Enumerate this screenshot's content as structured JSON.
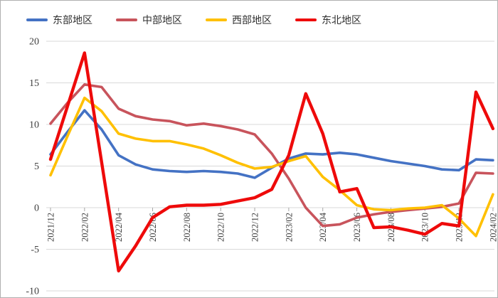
{
  "chart_data": {
    "type": "line",
    "title": "",
    "xlabel": "",
    "ylabel": "",
    "ylim": [
      -10,
      20
    ],
    "y_ticks": [
      20,
      15,
      10,
      5,
      0,
      -5,
      -10
    ],
    "grid": true,
    "legend_position": "top",
    "x_tick_labels": [
      "2021/12",
      "2022/02",
      "2022/04",
      "2022/06",
      "2022/08",
      "2022/10",
      "2022/12",
      "2023/02",
      "2023/04",
      "2023/06",
      "2023/08",
      "2023/10",
      "2023/12",
      "2024/02"
    ],
    "categories": [
      "2021/12",
      "2022/01",
      "2022/02",
      "2022/03",
      "2022/04",
      "2022/05",
      "2022/06",
      "2022/07",
      "2022/08",
      "2022/09",
      "2022/10",
      "2022/11",
      "2022/12",
      "2023/01",
      "2023/02",
      "2023/03",
      "2023/04",
      "2023/05",
      "2023/06",
      "2023/07",
      "2023/08",
      "2023/09",
      "2023/10",
      "2023/11",
      "2023/12",
      "2024/01",
      "2024/02"
    ],
    "series": [
      {
        "name": "东部地区",
        "color": "#4472C4",
        "values": [
          6.4,
          9.1,
          11.7,
          9.4,
          6.3,
          5.2,
          4.6,
          4.4,
          4.3,
          4.4,
          4.3,
          4.1,
          3.6,
          4.8,
          5.9,
          6.5,
          6.4,
          6.6,
          6.4,
          6.0,
          5.6,
          5.3,
          5.0,
          4.6,
          4.5,
          5.8,
          5.7
        ]
      },
      {
        "name": "中部地区",
        "color": "#C8545C",
        "values": [
          10.1,
          12.6,
          14.8,
          14.5,
          11.9,
          11.0,
          10.6,
          10.4,
          9.9,
          10.1,
          9.8,
          9.4,
          8.8,
          6.5,
          3.5,
          0.0,
          -2.2,
          -2.0,
          -1.2,
          -0.8,
          -0.5,
          -0.3,
          -0.1,
          0.1,
          0.5,
          4.2,
          4.1
        ]
      },
      {
        "name": "西部地区",
        "color": "#FFC000",
        "values": [
          3.9,
          8.6,
          13.2,
          11.6,
          8.9,
          8.3,
          8.0,
          8.0,
          7.6,
          7.1,
          6.3,
          5.4,
          4.7,
          4.9,
          5.6,
          6.2,
          3.7,
          2.1,
          0.3,
          -0.2,
          -0.3,
          -0.1,
          0.0,
          0.3,
          -1.3,
          -3.4,
          1.6
        ]
      },
      {
        "name": "东北地区",
        "color": "#EE0A0A",
        "values": [
          5.8,
          12.2,
          18.6,
          5.5,
          -7.6,
          -4.6,
          -1.2,
          0.1,
          0.3,
          0.3,
          0.4,
          0.8,
          1.2,
          2.2,
          6.3,
          13.7,
          8.9,
          1.9,
          2.3,
          -2.4,
          -2.3,
          -2.7,
          -3.2,
          -1.9,
          -2.2,
          13.9,
          9.5
        ]
      }
    ],
    "style": {
      "grid_color": "#d9d9d9",
      "tick_color": "#a6a6a6",
      "line_width": 3.6,
      "emphasis_line_width": 4.4
    }
  }
}
